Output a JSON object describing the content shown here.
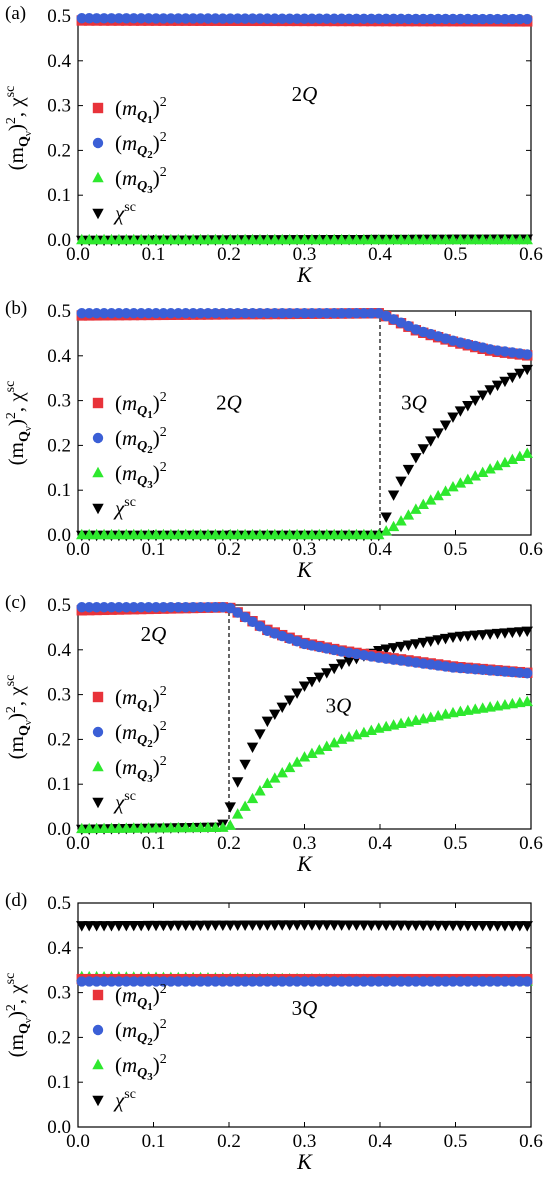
{
  "legend": [
    {
      "kind": "square",
      "color": "#e8333a",
      "text": [
        "(",
        "m",
        "Q",
        "1",
        ")",
        "2"
      ]
    },
    {
      "kind": "circle",
      "color": "#3b5fd6",
      "text": [
        "(",
        "m",
        "Q",
        "2",
        ")",
        "2"
      ]
    },
    {
      "kind": "triangle-up",
      "color": "#2ee82e",
      "text": [
        "(",
        "m",
        "Q",
        "3",
        ")",
        "2"
      ]
    },
    {
      "kind": "triangle-down",
      "color": "#000000",
      "text": [
        "χ",
        "sc"
      ]
    }
  ],
  "y_axis_label": [
    "(m",
    "Q",
    "ν",
    ")",
    "2",
    ", χ",
    "sc"
  ],
  "x_axis_label": "K",
  "chart_data": [
    {
      "panel": "(a)",
      "type": "scatter",
      "xlim": [
        0.0,
        0.6
      ],
      "ylim": [
        0.0,
        0.5
      ],
      "xticks": [
        "0.0",
        "0.1",
        "0.2",
        "0.3",
        "0.4",
        "0.5",
        "0.6"
      ],
      "yticks": [
        "0.0",
        "0.1",
        "0.2",
        "0.3",
        "0.4",
        "0.5"
      ],
      "phase_labels": [
        {
          "text": "2Q",
          "x": 0.3,
          "y": 0.31
        }
      ],
      "transition_K": null,
      "series": [
        {
          "name": "(m_Q1)^2",
          "segments": [
            {
              "from": 0.0,
              "to": 0.6,
              "start": 0.49,
              "end": 0.488
            }
          ]
        },
        {
          "name": "(m_Q2)^2",
          "segments": [
            {
              "from": 0.0,
              "to": 0.6,
              "start": 0.495,
              "end": 0.493
            }
          ]
        },
        {
          "name": "(m_Q3)^2",
          "segments": [
            {
              "from": 0.0,
              "to": 0.6,
              "start": 0.0,
              "end": 0.0
            }
          ]
        },
        {
          "name": "chi_sc",
          "segments": [
            {
              "from": 0.0,
              "to": 0.6,
              "start": 0.0,
              "end": 0.003
            }
          ]
        }
      ]
    },
    {
      "panel": "(b)",
      "type": "scatter",
      "xlim": [
        0.0,
        0.6
      ],
      "ylim": [
        0.0,
        0.5
      ],
      "xticks": [
        "0.0",
        "0.1",
        "0.2",
        "0.3",
        "0.4",
        "0.5",
        "0.6"
      ],
      "yticks": [
        "0.0",
        "0.1",
        "0.2",
        "0.3",
        "0.4",
        "0.5"
      ],
      "phase_labels": [
        {
          "text": "2Q",
          "x": 0.2,
          "y": 0.28
        },
        {
          "text": "3Q",
          "x": 0.445,
          "y": 0.28
        }
      ],
      "transition_K": 0.4,
      "series": [
        {
          "name": "(m_Q1)^2",
          "knots": [
            [
              0.0,
              0.49
            ],
            [
              0.4,
              0.495
            ],
            [
              0.45,
              0.455
            ],
            [
              0.5,
              0.43
            ],
            [
              0.55,
              0.41
            ],
            [
              0.6,
              0.4
            ]
          ]
        },
        {
          "name": "(m_Q2)^2",
          "knots": [
            [
              0.0,
              0.495
            ],
            [
              0.4,
              0.495
            ],
            [
              0.45,
              0.457
            ],
            [
              0.5,
              0.432
            ],
            [
              0.55,
              0.413
            ],
            [
              0.6,
              0.402
            ]
          ]
        },
        {
          "name": "(m_Q3)^2",
          "knots": [
            [
              0.0,
              0.0
            ],
            [
              0.4,
              0.0
            ],
            [
              0.42,
              0.02
            ],
            [
              0.45,
              0.06
            ],
            [
              0.5,
              0.11
            ],
            [
              0.55,
              0.15
            ],
            [
              0.6,
              0.185
            ]
          ]
        },
        {
          "name": "chi_sc",
          "knots": [
            [
              0.0,
              0.0
            ],
            [
              0.4,
              0.0
            ],
            [
              0.41,
              0.05
            ],
            [
              0.42,
              0.1
            ],
            [
              0.45,
              0.18
            ],
            [
              0.5,
              0.27
            ],
            [
              0.55,
              0.33
            ],
            [
              0.6,
              0.375
            ]
          ]
        }
      ]
    },
    {
      "panel": "(c)",
      "type": "scatter",
      "xlim": [
        0.0,
        0.6
      ],
      "ylim": [
        0.0,
        0.5
      ],
      "xticks": [
        "0.0",
        "0.1",
        "0.2",
        "0.3",
        "0.4",
        "0.5",
        "0.6"
      ],
      "yticks": [
        "0.0",
        "0.1",
        "0.2",
        "0.3",
        "0.4",
        "0.5"
      ],
      "phase_labels": [
        {
          "text": "2Q",
          "x": 0.1,
          "y": 0.42
        },
        {
          "text": "3Q",
          "x": 0.345,
          "y": 0.26
        }
      ],
      "transition_K": 0.2,
      "series": [
        {
          "name": "(m_Q1)^2",
          "knots": [
            [
              0.0,
              0.488
            ],
            [
              0.2,
              0.495
            ],
            [
              0.25,
              0.445
            ],
            [
              0.3,
              0.415
            ],
            [
              0.35,
              0.398
            ],
            [
              0.4,
              0.385
            ],
            [
              0.5,
              0.362
            ],
            [
              0.6,
              0.348
            ]
          ]
        },
        {
          "name": "(m_Q2)^2",
          "knots": [
            [
              0.0,
              0.495
            ],
            [
              0.2,
              0.495
            ],
            [
              0.25,
              0.443
            ],
            [
              0.3,
              0.413
            ],
            [
              0.35,
              0.396
            ],
            [
              0.4,
              0.382
            ],
            [
              0.5,
              0.36
            ],
            [
              0.6,
              0.347
            ]
          ]
        },
        {
          "name": "(m_Q3)^2",
          "knots": [
            [
              0.0,
              0.0
            ],
            [
              0.2,
              0.003
            ],
            [
              0.21,
              0.03
            ],
            [
              0.25,
              0.1
            ],
            [
              0.3,
              0.16
            ],
            [
              0.35,
              0.2
            ],
            [
              0.4,
              0.225
            ],
            [
              0.5,
              0.26
            ],
            [
              0.6,
              0.285
            ]
          ]
        },
        {
          "name": "chi_sc",
          "knots": [
            [
              0.0,
              0.0
            ],
            [
              0.19,
              0.005
            ],
            [
              0.2,
              0.04
            ],
            [
              0.21,
              0.1
            ],
            [
              0.23,
              0.18
            ],
            [
              0.25,
              0.24
            ],
            [
              0.3,
              0.32
            ],
            [
              0.35,
              0.37
            ],
            [
              0.4,
              0.4
            ],
            [
              0.5,
              0.43
            ],
            [
              0.6,
              0.443
            ]
          ]
        }
      ]
    },
    {
      "panel": "(d)",
      "type": "scatter",
      "xlim": [
        0.0,
        0.6
      ],
      "ylim": [
        0.0,
        0.5
      ],
      "xticks": [
        "0.0",
        "0.1",
        "0.2",
        "0.3",
        "0.4",
        "0.5",
        "0.6"
      ],
      "yticks": [
        "0.0",
        "0.1",
        "0.2",
        "0.3",
        "0.4",
        "0.5"
      ],
      "phase_labels": [
        {
          "text": "3Q",
          "x": 0.3,
          "y": 0.25
        }
      ],
      "transition_K": null,
      "series": [
        {
          "name": "(m_Q1)^2",
          "knots": [
            [
              0.0,
              0.33
            ],
            [
              0.6,
              0.33
            ]
          ]
        },
        {
          "name": "(m_Q2)^2",
          "knots": [
            [
              0.0,
              0.325
            ],
            [
              0.6,
              0.325
            ]
          ]
        },
        {
          "name": "(m_Q3)^2",
          "knots": [
            [
              0.0,
              0.335
            ],
            [
              0.6,
              0.325
            ]
          ]
        },
        {
          "name": "chi_sc",
          "knots": [
            [
              0.0,
              0.45
            ],
            [
              0.3,
              0.452
            ],
            [
              0.6,
              0.45
            ]
          ]
        }
      ]
    }
  ]
}
